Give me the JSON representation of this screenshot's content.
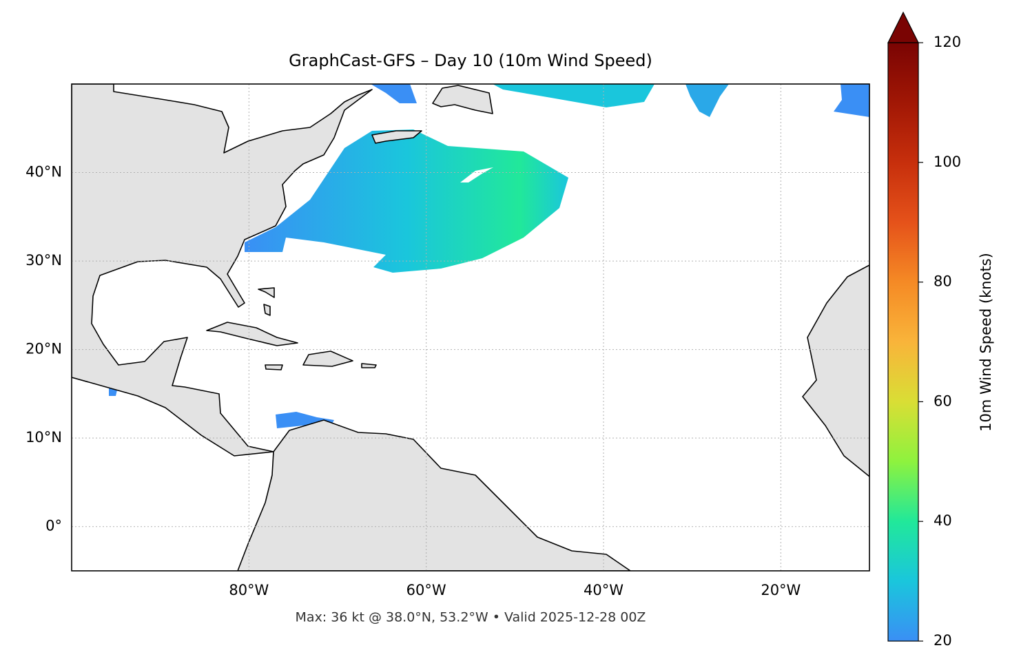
{
  "chart_data": {
    "type": "map",
    "title": "GraphCast-GFS – Day 10 (10m Wind Speed)",
    "footnote": "Max: 36 kt @ 38.0°N, 53.2°W • Valid 2025-12-28 00Z",
    "xlim": [
      -100,
      -10
    ],
    "ylim": [
      -5,
      50
    ],
    "xticks": [
      {
        "value": -80,
        "label": "80°W"
      },
      {
        "value": -60,
        "label": "60°W"
      },
      {
        "value": -40,
        "label": "40°W"
      },
      {
        "value": -20,
        "label": "20°W"
      }
    ],
    "yticks": [
      {
        "value": 0,
        "label": "0°"
      },
      {
        "value": 10,
        "label": "10°N"
      },
      {
        "value": 20,
        "label": "20°N"
      },
      {
        "value": 30,
        "label": "30°N"
      },
      {
        "value": 40,
        "label": "40°N"
      }
    ],
    "grid": true,
    "colorbar": {
      "label": "10m Wind Speed (knots)",
      "lim": [
        20,
        120
      ],
      "ticks": [
        20,
        40,
        60,
        80,
        100,
        120
      ],
      "colormap": [
        "#3a8ff5",
        "#1ac6dc",
        "#21e89a",
        "#8ef23e",
        "#d9de35",
        "#f9b43a",
        "#f58a25",
        "#e5521a",
        "#c72f0c",
        "#a11705",
        "#7a0403"
      ]
    }
  }
}
